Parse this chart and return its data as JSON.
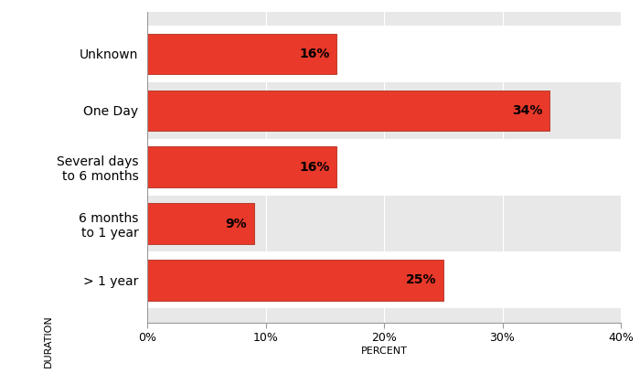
{
  "categories": [
    "Unknown",
    "One Day",
    "Several days\nto 6 months",
    "6 months\nto 1 year",
    "> 1 year"
  ],
  "values": [
    16,
    34,
    16,
    9,
    25
  ],
  "bar_color": "#e8392a",
  "bar_edge_color": "#b03020",
  "plot_bg_color": "#e8e8e8",
  "fig_bg_color": "#ffffff",
  "label_color": "#000000",
  "xlabel": "PERCENT",
  "ylabel": "DURATION",
  "xlim": [
    0,
    40
  ],
  "xticks": [
    0,
    10,
    20,
    30,
    40
  ],
  "xtick_labels": [
    "0%",
    "10%",
    "20%",
    "30%",
    "40%"
  ],
  "bar_height": 0.72,
  "label_fontsize": 10,
  "tick_fontsize": 9,
  "axis_label_fontsize": 8,
  "row_colors": [
    "#ffffff",
    "#e8e8e8"
  ]
}
